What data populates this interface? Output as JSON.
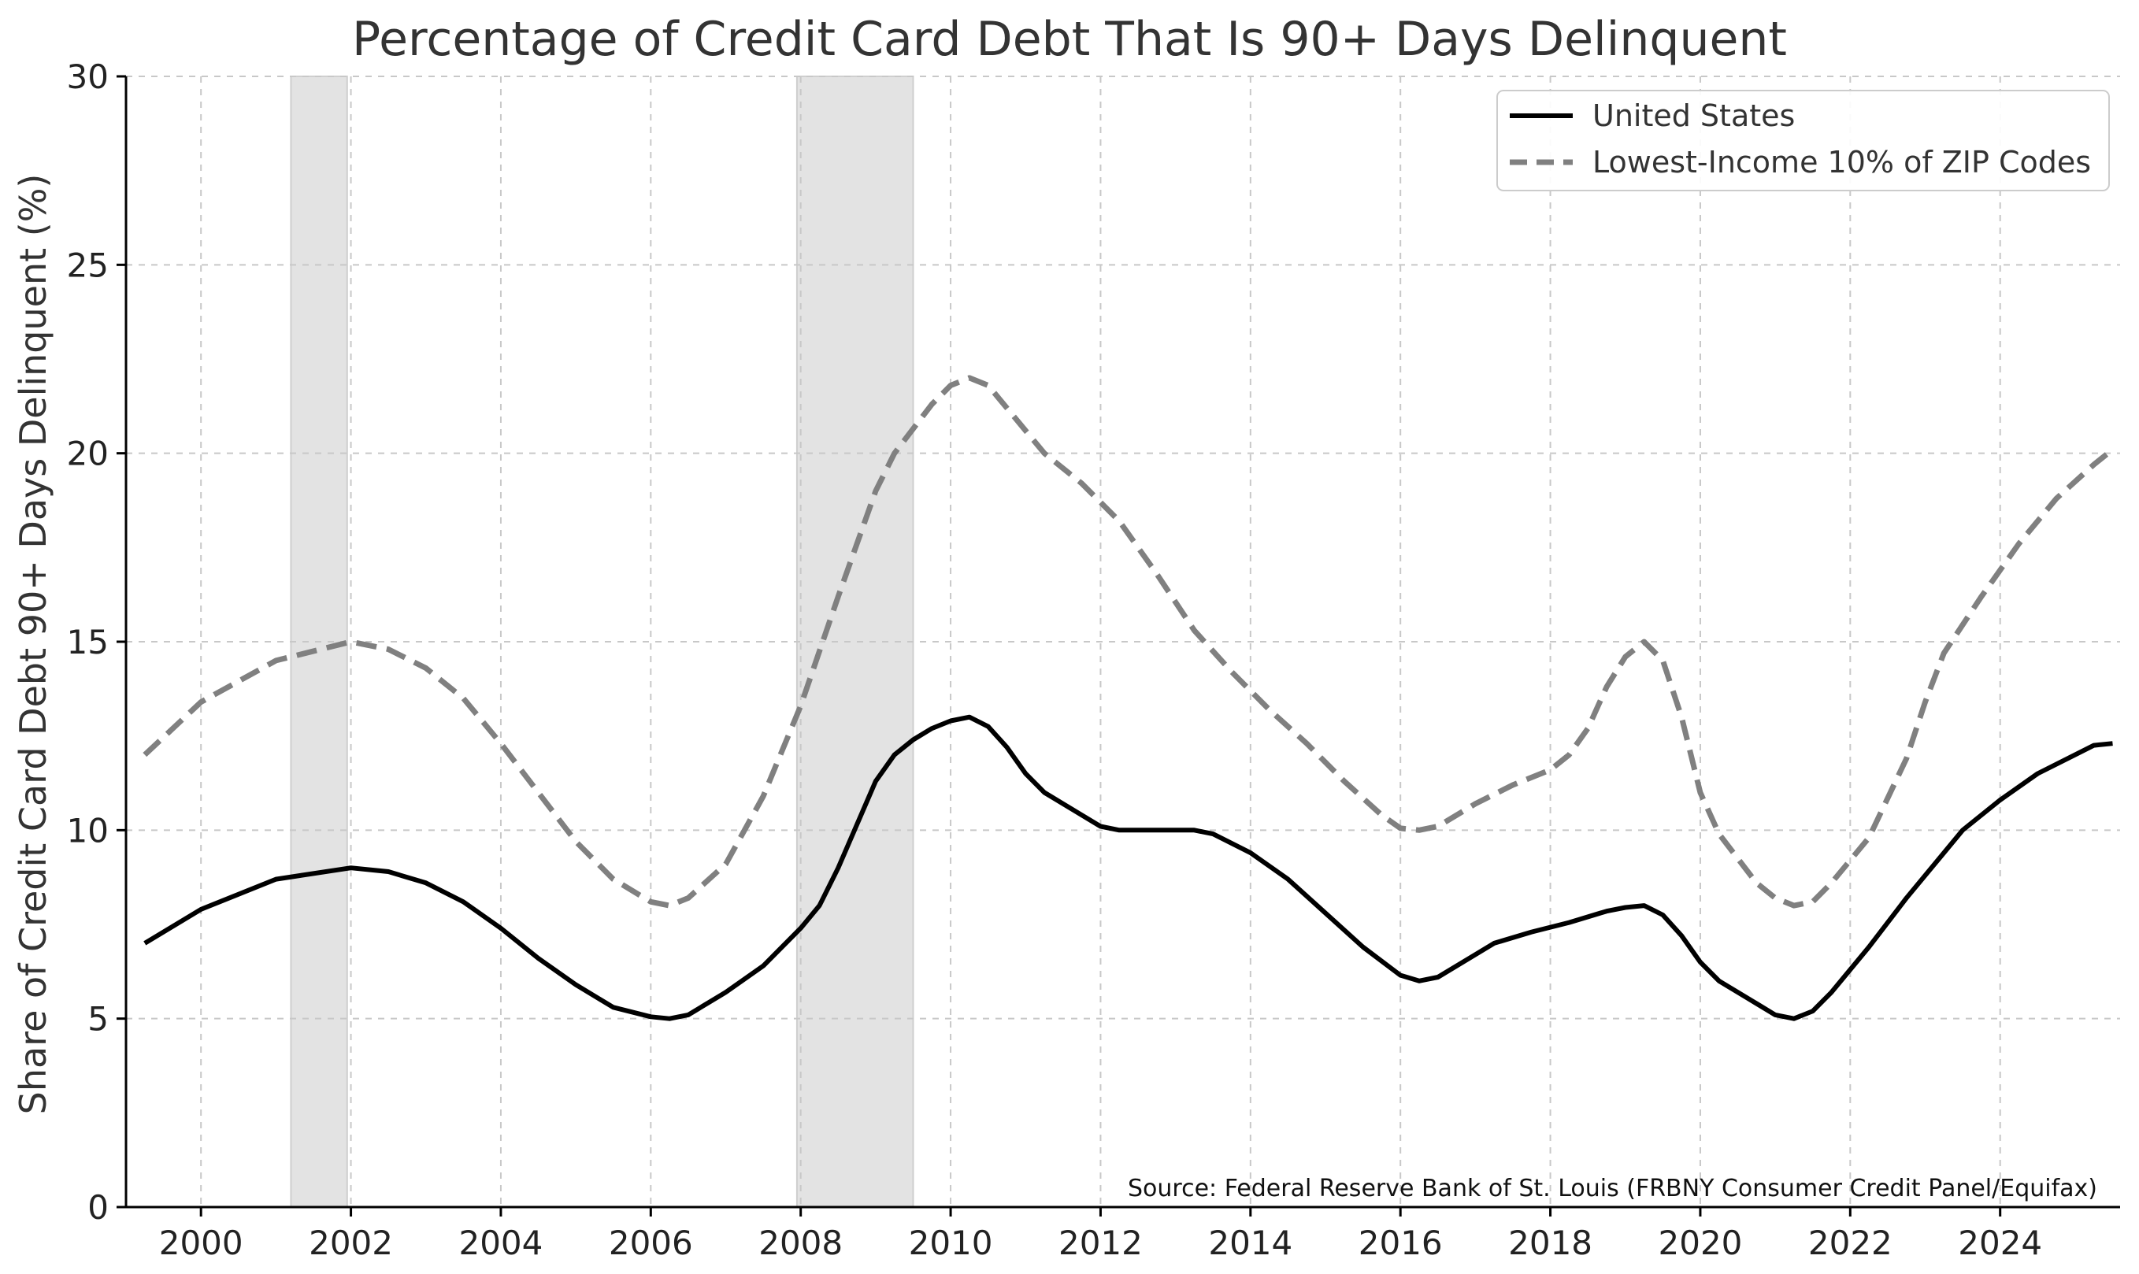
{
  "chart_data": {
    "type": "line",
    "title": "Percentage of Credit Card Debt That Is 90+ Days Delinquent",
    "xlabel": "",
    "ylabel": "Share of Credit Card Debt 90+ Days Delinquent (%)",
    "xlim": [
      1999.0,
      2025.6
    ],
    "ylim": [
      0,
      30
    ],
    "x_ticks": [
      2000,
      2002,
      2004,
      2006,
      2008,
      2010,
      2012,
      2014,
      2016,
      2018,
      2020,
      2022,
      2024
    ],
    "y_ticks": [
      0,
      5,
      10,
      15,
      20,
      25,
      30
    ],
    "grid": true,
    "legend_position": "top-right",
    "recession_bands": [
      [
        2001.2,
        2001.95
      ],
      [
        2007.95,
        2009.5
      ]
    ],
    "annotation": "Source: Federal Reserve Bank of St. Louis (FRBNY Consumer Credit Panel/Equifax)",
    "series": [
      {
        "name": "United States",
        "style": "solid",
        "color": "#000000",
        "points": [
          [
            1999.25,
            7.0
          ],
          [
            2000.0,
            7.9
          ],
          [
            2001.0,
            8.7
          ],
          [
            2002.0,
            9.0
          ],
          [
            2002.5,
            8.9
          ],
          [
            2003.0,
            8.6
          ],
          [
            2003.5,
            8.1
          ],
          [
            2004.0,
            7.4
          ],
          [
            2004.5,
            6.6
          ],
          [
            2005.0,
            5.9
          ],
          [
            2005.5,
            5.3
          ],
          [
            2006.0,
            5.05
          ],
          [
            2006.25,
            5.0
          ],
          [
            2006.5,
            5.1
          ],
          [
            2007.0,
            5.7
          ],
          [
            2007.5,
            6.4
          ],
          [
            2008.0,
            7.4
          ],
          [
            2008.25,
            8.0
          ],
          [
            2008.5,
            9.0
          ],
          [
            2009.0,
            11.3
          ],
          [
            2009.25,
            12.0
          ],
          [
            2009.5,
            12.4
          ],
          [
            2009.75,
            12.7
          ],
          [
            2010.0,
            12.9
          ],
          [
            2010.25,
            13.0
          ],
          [
            2010.5,
            12.75
          ],
          [
            2010.75,
            12.2
          ],
          [
            2011.0,
            11.5
          ],
          [
            2011.25,
            11.0
          ],
          [
            2011.75,
            10.4
          ],
          [
            2012.0,
            10.1
          ],
          [
            2012.25,
            10.0
          ],
          [
            2013.0,
            10.0
          ],
          [
            2013.25,
            10.0
          ],
          [
            2013.5,
            9.9
          ],
          [
            2014.0,
            9.4
          ],
          [
            2014.5,
            8.7
          ],
          [
            2015.0,
            7.8
          ],
          [
            2015.5,
            6.9
          ],
          [
            2016.0,
            6.15
          ],
          [
            2016.25,
            6.0
          ],
          [
            2016.5,
            6.1
          ],
          [
            2017.0,
            6.7
          ],
          [
            2017.25,
            7.0
          ],
          [
            2017.75,
            7.3
          ],
          [
            2018.25,
            7.55
          ],
          [
            2018.75,
            7.85
          ],
          [
            2019.0,
            7.95
          ],
          [
            2019.25,
            8.0
          ],
          [
            2019.5,
            7.75
          ],
          [
            2019.75,
            7.2
          ],
          [
            2020.0,
            6.5
          ],
          [
            2020.25,
            6.0
          ],
          [
            2020.75,
            5.4
          ],
          [
            2021.0,
            5.1
          ],
          [
            2021.25,
            5.0
          ],
          [
            2021.5,
            5.2
          ],
          [
            2021.75,
            5.7
          ],
          [
            2022.25,
            6.9
          ],
          [
            2022.75,
            8.2
          ],
          [
            2023.25,
            9.4
          ],
          [
            2023.5,
            10.0
          ],
          [
            2024.0,
            10.8
          ],
          [
            2024.5,
            11.5
          ],
          [
            2025.0,
            12.0
          ],
          [
            2025.25,
            12.25
          ],
          [
            2025.5,
            12.3
          ]
        ]
      },
      {
        "name": "Lowest-Income 10% of ZIP Codes",
        "style": "dashed",
        "color": "#808080",
        "points": [
          [
            1999.25,
            12.0
          ],
          [
            2000.0,
            13.4
          ],
          [
            2001.0,
            14.5
          ],
          [
            2002.0,
            15.0
          ],
          [
            2002.5,
            14.8
          ],
          [
            2003.0,
            14.3
          ],
          [
            2003.5,
            13.5
          ],
          [
            2004.0,
            12.3
          ],
          [
            2004.5,
            11.0
          ],
          [
            2005.0,
            9.7
          ],
          [
            2005.5,
            8.7
          ],
          [
            2006.0,
            8.1
          ],
          [
            2006.25,
            8.0
          ],
          [
            2006.5,
            8.2
          ],
          [
            2007.0,
            9.1
          ],
          [
            2007.5,
            10.9
          ],
          [
            2008.0,
            13.3
          ],
          [
            2008.5,
            16.2
          ],
          [
            2009.0,
            19.0
          ],
          [
            2009.25,
            20.0
          ],
          [
            2009.75,
            21.3
          ],
          [
            2010.0,
            21.8
          ],
          [
            2010.25,
            22.0
          ],
          [
            2010.5,
            21.8
          ],
          [
            2010.75,
            21.2
          ],
          [
            2011.25,
            20.0
          ],
          [
            2011.75,
            19.2
          ],
          [
            2012.25,
            18.2
          ],
          [
            2012.75,
            16.8
          ],
          [
            2013.25,
            15.3
          ],
          [
            2013.75,
            14.2
          ],
          [
            2014.25,
            13.2
          ],
          [
            2014.75,
            12.3
          ],
          [
            2015.25,
            11.3
          ],
          [
            2015.75,
            10.4
          ],
          [
            2016.0,
            10.05
          ],
          [
            2016.25,
            10.0
          ],
          [
            2016.5,
            10.1
          ],
          [
            2017.0,
            10.7
          ],
          [
            2017.5,
            11.2
          ],
          [
            2018.0,
            11.6
          ],
          [
            2018.25,
            12.0
          ],
          [
            2018.5,
            12.7
          ],
          [
            2018.75,
            13.8
          ],
          [
            2019.0,
            14.6
          ],
          [
            2019.25,
            15.0
          ],
          [
            2019.5,
            14.5
          ],
          [
            2019.75,
            13.0
          ],
          [
            2020.0,
            11.0
          ],
          [
            2020.25,
            9.9
          ],
          [
            2020.75,
            8.6
          ],
          [
            2021.0,
            8.2
          ],
          [
            2021.25,
            8.0
          ],
          [
            2021.5,
            8.1
          ],
          [
            2021.75,
            8.6
          ],
          [
            2022.25,
            9.8
          ],
          [
            2022.75,
            11.9
          ],
          [
            2023.0,
            13.4
          ],
          [
            2023.25,
            14.7
          ],
          [
            2023.75,
            16.2
          ],
          [
            2024.25,
            17.6
          ],
          [
            2024.75,
            18.8
          ],
          [
            2025.25,
            19.7
          ],
          [
            2025.5,
            20.1
          ]
        ]
      }
    ]
  }
}
